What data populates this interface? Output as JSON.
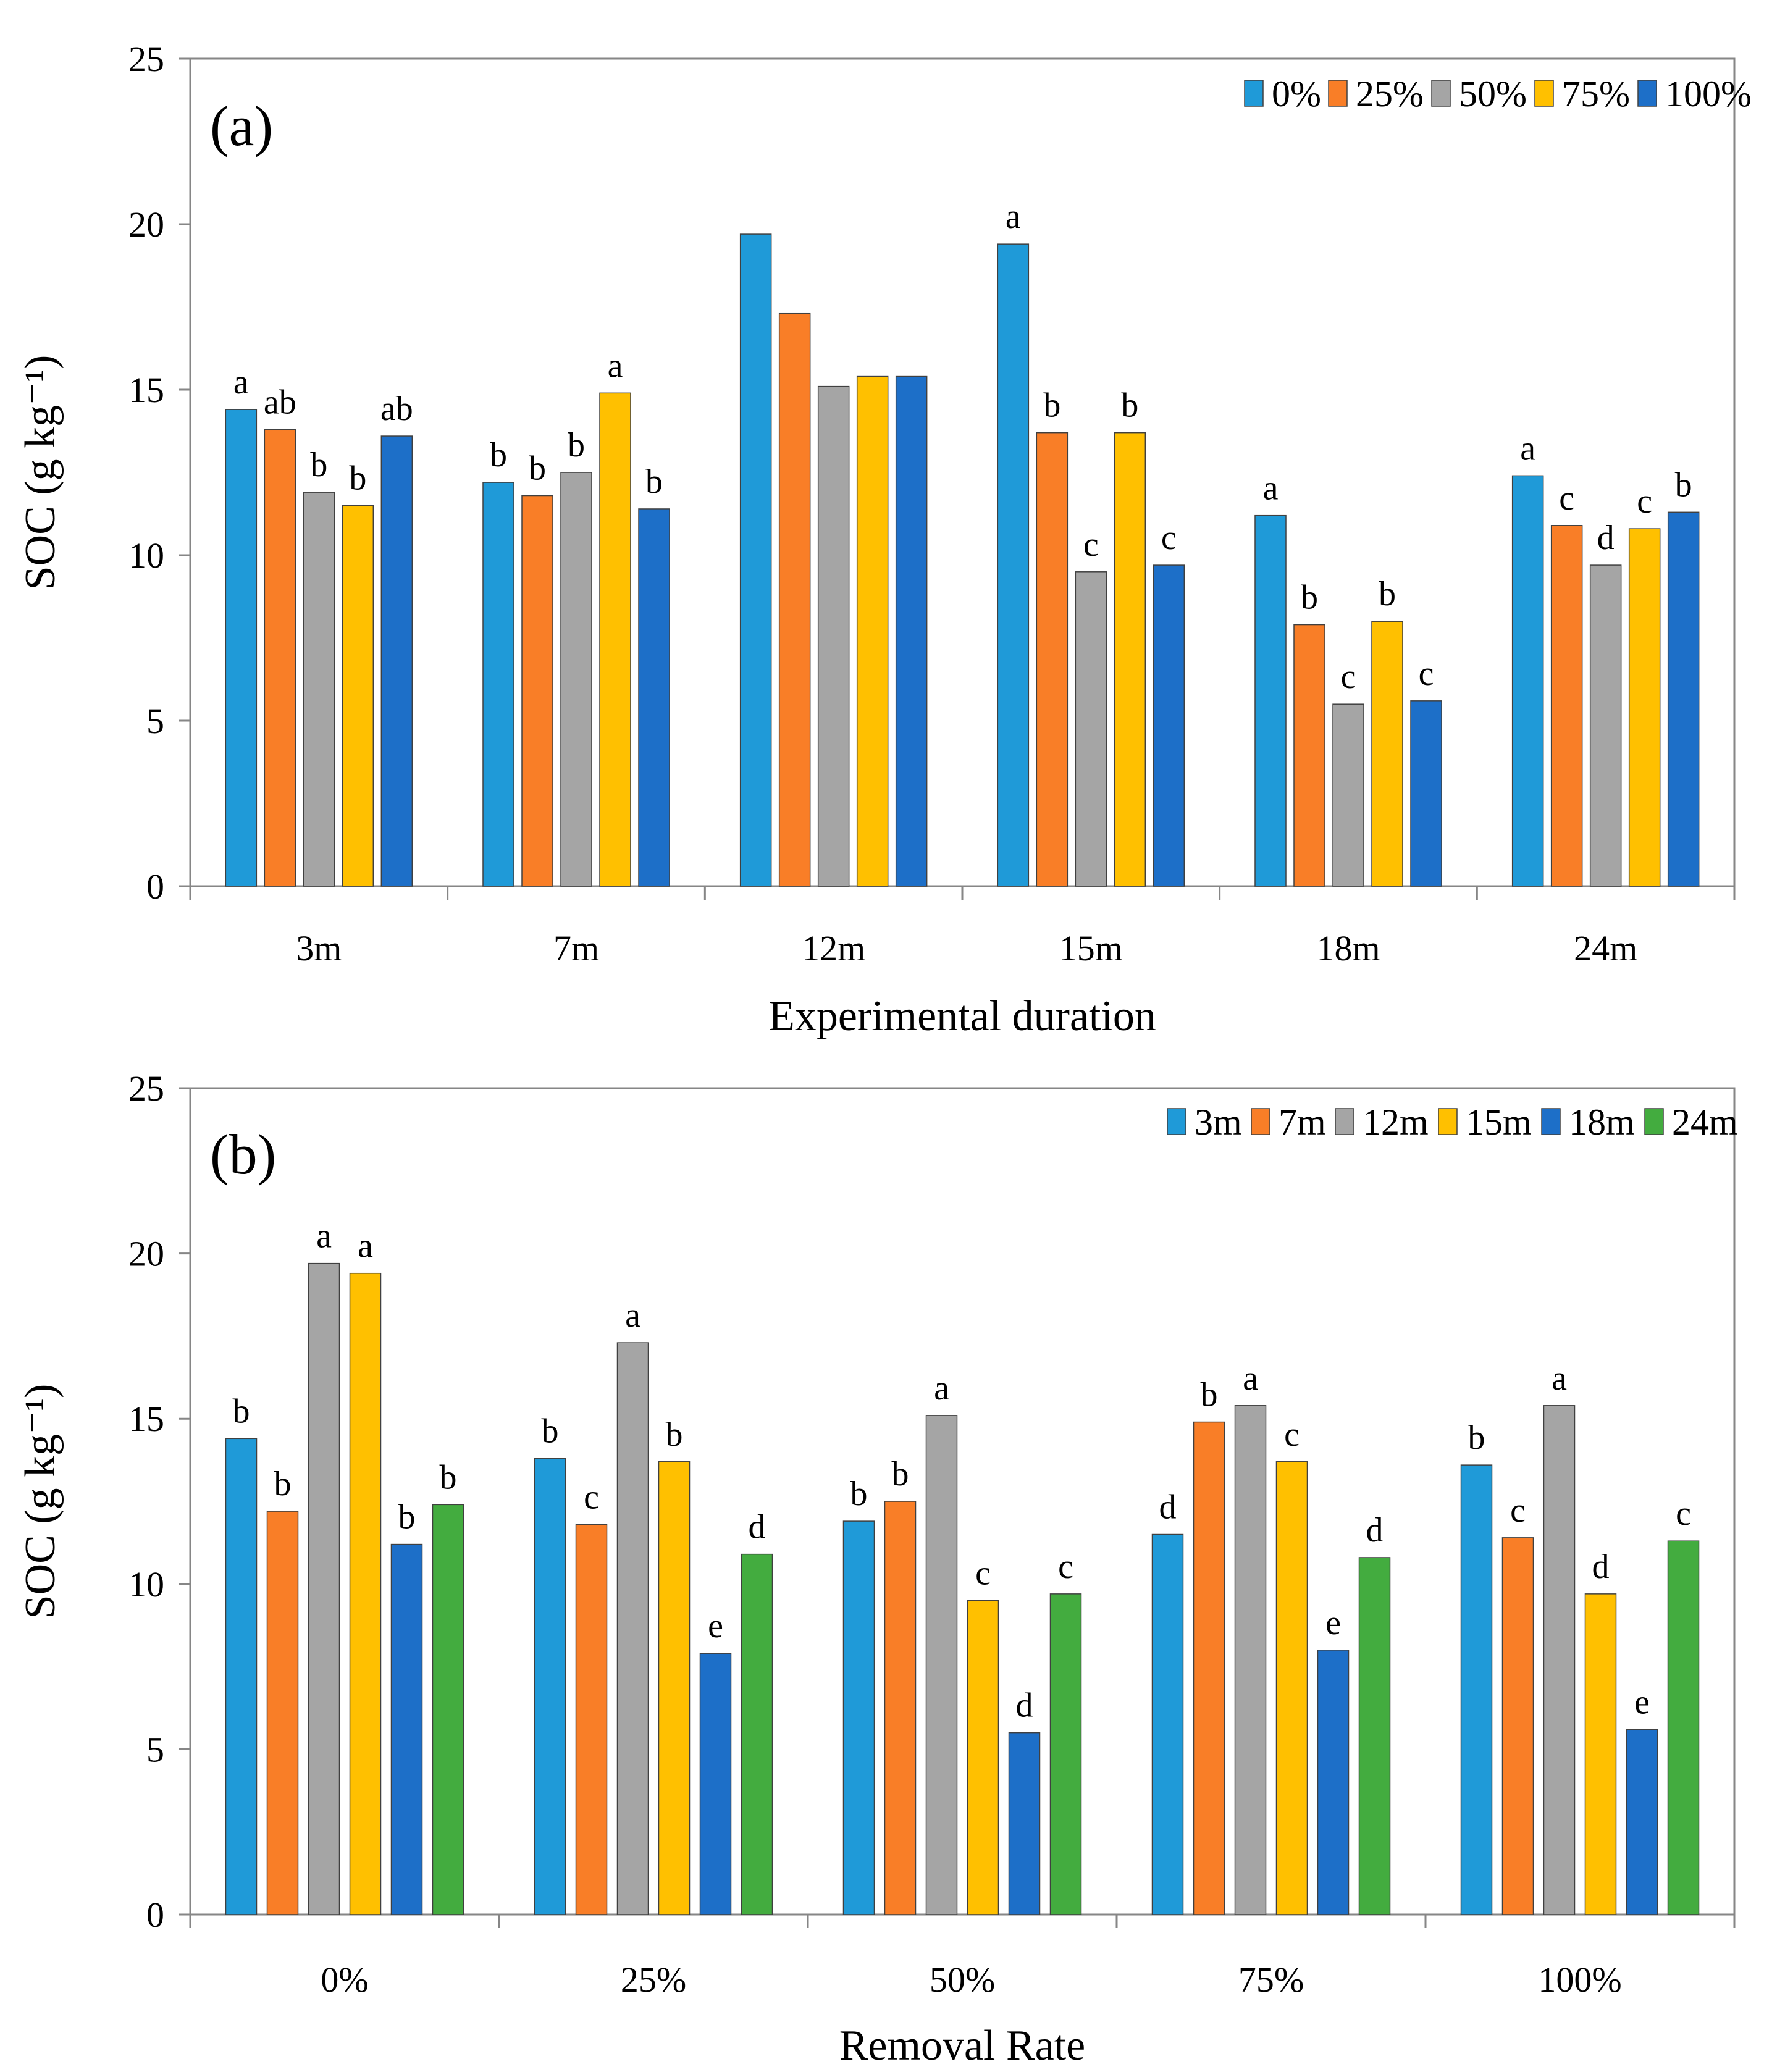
{
  "chart_data": [
    {
      "type": "bar",
      "panel_label": "(a)",
      "categories": [
        "3m",
        "7m",
        "12m",
        "15m",
        "18m",
        "24m"
      ],
      "series": [
        {
          "name": "0%",
          "color": "#1F9AD8",
          "values": [
            14.4,
            12.2,
            19.7,
            19.4,
            11.2,
            12.4
          ],
          "labels": [
            "a",
            "b",
            "",
            "a",
            "a",
            "a"
          ]
        },
        {
          "name": "25%",
          "color": "#F97E27",
          "values": [
            13.8,
            11.8,
            17.3,
            13.7,
            7.9,
            10.9
          ],
          "labels": [
            "ab",
            "b",
            "",
            "b",
            "b",
            "c"
          ]
        },
        {
          "name": "50%",
          "color": "#A5A5A5",
          "values": [
            11.9,
            12.5,
            15.1,
            9.5,
            5.5,
            9.7
          ],
          "labels": [
            "b",
            "b",
            "",
            "c",
            "c",
            "d"
          ]
        },
        {
          "name": "75%",
          "color": "#FFC000",
          "values": [
            11.5,
            14.9,
            15.4,
            13.7,
            8.0,
            10.8
          ],
          "labels": [
            "b",
            "a",
            "",
            "b",
            "b",
            "c"
          ]
        },
        {
          "name": "100%",
          "color": "#1D6FC8",
          "values": [
            13.6,
            11.4,
            15.4,
            9.7,
            5.6,
            11.3
          ],
          "labels": [
            "ab",
            "b",
            "",
            "c",
            "c",
            "b"
          ]
        }
      ],
      "xlabel": "Experimental duration",
      "ylabel": "SOC (g kg⁻¹)",
      "ylim": [
        0,
        25
      ],
      "yticks": [
        "0",
        "5",
        "10",
        "15",
        "20",
        "25"
      ],
      "legend_position": "top-right"
    },
    {
      "type": "bar",
      "panel_label": "(b)",
      "categories": [
        "0%",
        "25%",
        "50%",
        "75%",
        "100%"
      ],
      "series": [
        {
          "name": "3m",
          "color": "#1F9AD8",
          "values": [
            14.4,
            13.8,
            11.9,
            11.5,
            13.6
          ],
          "labels": [
            "b",
            "b",
            "b",
            "d",
            "b"
          ]
        },
        {
          "name": "7m",
          "color": "#F97E27",
          "values": [
            12.2,
            11.8,
            12.5,
            14.9,
            11.4
          ],
          "labels": [
            "b",
            "c",
            "b",
            "b",
            "c"
          ]
        },
        {
          "name": "12m",
          "color": "#A5A5A5",
          "values": [
            19.7,
            17.3,
            15.1,
            15.4,
            15.4
          ],
          "labels": [
            "a",
            "a",
            "a",
            "a",
            "a"
          ]
        },
        {
          "name": "15m",
          "color": "#FFC000",
          "values": [
            19.4,
            13.7,
            9.5,
            13.7,
            9.7
          ],
          "labels": [
            "a",
            "b",
            "c",
            "c",
            "d"
          ]
        },
        {
          "name": "18m",
          "color": "#1D6FC8",
          "values": [
            11.2,
            7.9,
            5.5,
            8.0,
            5.6
          ],
          "labels": [
            "b",
            "e",
            "d",
            "e",
            "e"
          ]
        },
        {
          "name": "24m",
          "color": "#43AC3F",
          "values": [
            12.4,
            10.9,
            9.7,
            10.8,
            11.3
          ],
          "labels": [
            "b",
            "d",
            "c",
            "d",
            "c"
          ]
        }
      ],
      "xlabel": "Removal Rate",
      "ylabel": "SOC (g kg⁻¹)",
      "ylim": [
        0,
        25
      ],
      "yticks": [
        "0",
        "5",
        "10",
        "15",
        "20",
        "25"
      ],
      "legend_position": "top-right"
    }
  ]
}
